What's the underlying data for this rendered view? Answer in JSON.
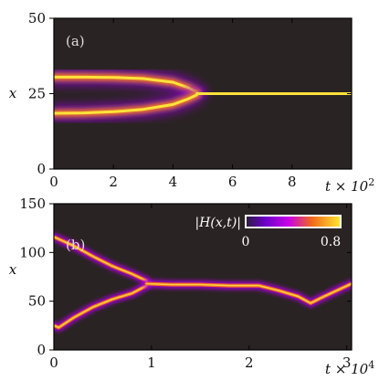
{
  "chart_data": [
    {
      "type": "heatmap",
      "panel_label": "(a)",
      "xlabel": "t × 10",
      "xlabel_exponent": "2",
      "ylabel": "x",
      "xlim": [
        0,
        10
      ],
      "ylim": [
        0,
        50
      ],
      "x_ticks": [
        "0",
        "2",
        "4",
        "6",
        "8"
      ],
      "y_ticks": [
        "0",
        "25",
        "50"
      ],
      "colormap": "black-purple-orange-yellow",
      "background": "#2a2323",
      "branches": [
        {
          "name": "upper",
          "points": [
            [
              0,
              30.5
            ],
            [
              1,
              30.5
            ],
            [
              2,
              30.4
            ],
            [
              3,
              30.0
            ],
            [
              4,
              28.8
            ],
            [
              4.5,
              27.0
            ],
            [
              4.8,
              25.5
            ]
          ]
        },
        {
          "name": "lower",
          "points": [
            [
              0,
              18.5
            ],
            [
              1,
              18.6
            ],
            [
              2,
              19.0
            ],
            [
              3,
              19.8
            ],
            [
              4,
              21.4
            ],
            [
              4.5,
              23.2
            ],
            [
              4.8,
              24.6
            ]
          ]
        },
        {
          "name": "merged",
          "points": [
            [
              4.8,
              25
            ],
            [
              6,
              25
            ],
            [
              8,
              25
            ],
            [
              10,
              25
            ]
          ]
        }
      ]
    },
    {
      "type": "heatmap",
      "panel_label": "(b)",
      "xlabel": "t × 10",
      "xlabel_exponent": "4",
      "ylabel": "x",
      "xlim": [
        0,
        3.05
      ],
      "ylim": [
        0,
        150
      ],
      "x_ticks": [
        "0",
        "1",
        "2",
        "3"
      ],
      "y_ticks": [
        "0",
        "50",
        "100",
        "150"
      ],
      "colormap": "black-purple-orange-yellow",
      "background": "#2a2323",
      "colorbar": {
        "label": "|H(x,t)|",
        "min": "0",
        "max": "0.8"
      },
      "tracks": [
        {
          "name": "upper",
          "points": [
            [
              0,
              116
            ],
            [
              0.2,
              107
            ],
            [
              0.4,
              96
            ],
            [
              0.6,
              86
            ],
            [
              0.8,
              78
            ],
            [
              0.95,
              71
            ]
          ]
        },
        {
          "name": "lower",
          "points": [
            [
              0,
              25
            ],
            [
              0.05,
              23
            ],
            [
              0.2,
              33
            ],
            [
              0.4,
              44
            ],
            [
              0.6,
              52
            ],
            [
              0.8,
              58
            ],
            [
              0.95,
              66
            ]
          ]
        },
        {
          "name": "merged",
          "points": [
            [
              0.95,
              68
            ],
            [
              1.2,
              67
            ],
            [
              1.5,
              67
            ],
            [
              1.8,
              66
            ],
            [
              2.1,
              66
            ],
            [
              2.3,
              61
            ],
            [
              2.5,
              55
            ],
            [
              2.63,
              48
            ],
            [
              2.75,
              54
            ],
            [
              2.9,
              61
            ],
            [
              3.05,
              68
            ]
          ]
        }
      ]
    }
  ]
}
